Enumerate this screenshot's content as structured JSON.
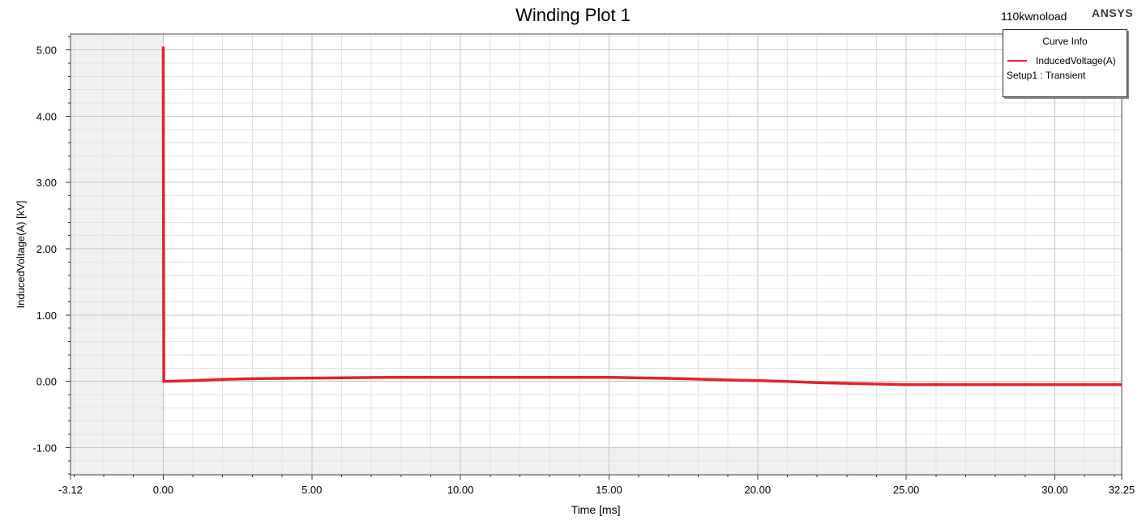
{
  "header": {
    "project": "110kwnoload",
    "brand": "ANSYS"
  },
  "chart_data": {
    "type": "line",
    "title": "Winding Plot 1",
    "xlabel": "Time [ms]",
    "ylabel": "InducedVoltage(A) [kV]",
    "xlim": [
      -3.12,
      32.25
    ],
    "ylim": [
      -1.41,
      5.24
    ],
    "x_ticks": [
      "-3.12",
      "0.00",
      "5.00",
      "10.00",
      "15.00",
      "20.00",
      "25.00",
      "30.00",
      "32.25"
    ],
    "y_ticks": [
      "5.00",
      "4.00",
      "3.00",
      "2.00",
      "1.00",
      "0.00",
      "-1.00"
    ],
    "grid": true,
    "legend": {
      "title": "Curve Info",
      "position": "top-right",
      "setup": "Setup1 : Transient"
    },
    "series": [
      {
        "name": "InducedVoltage(A)",
        "color": "#e3232b",
        "x": [
          0,
          0.02,
          1.0,
          2.0,
          3.0,
          5.0,
          7.5,
          10.0,
          12.5,
          15.0,
          17.5,
          19.0,
          20.0,
          21.0,
          22.0,
          23.0,
          25.0,
          27.5,
          30.0,
          32.25
        ],
        "y": [
          5.05,
          0.0,
          0.01,
          0.03,
          0.04,
          0.05,
          0.06,
          0.06,
          0.06,
          0.06,
          0.04,
          0.02,
          0.01,
          0.0,
          -0.02,
          -0.03,
          -0.05,
          -0.05,
          -0.05,
          -0.05
        ]
      }
    ]
  }
}
